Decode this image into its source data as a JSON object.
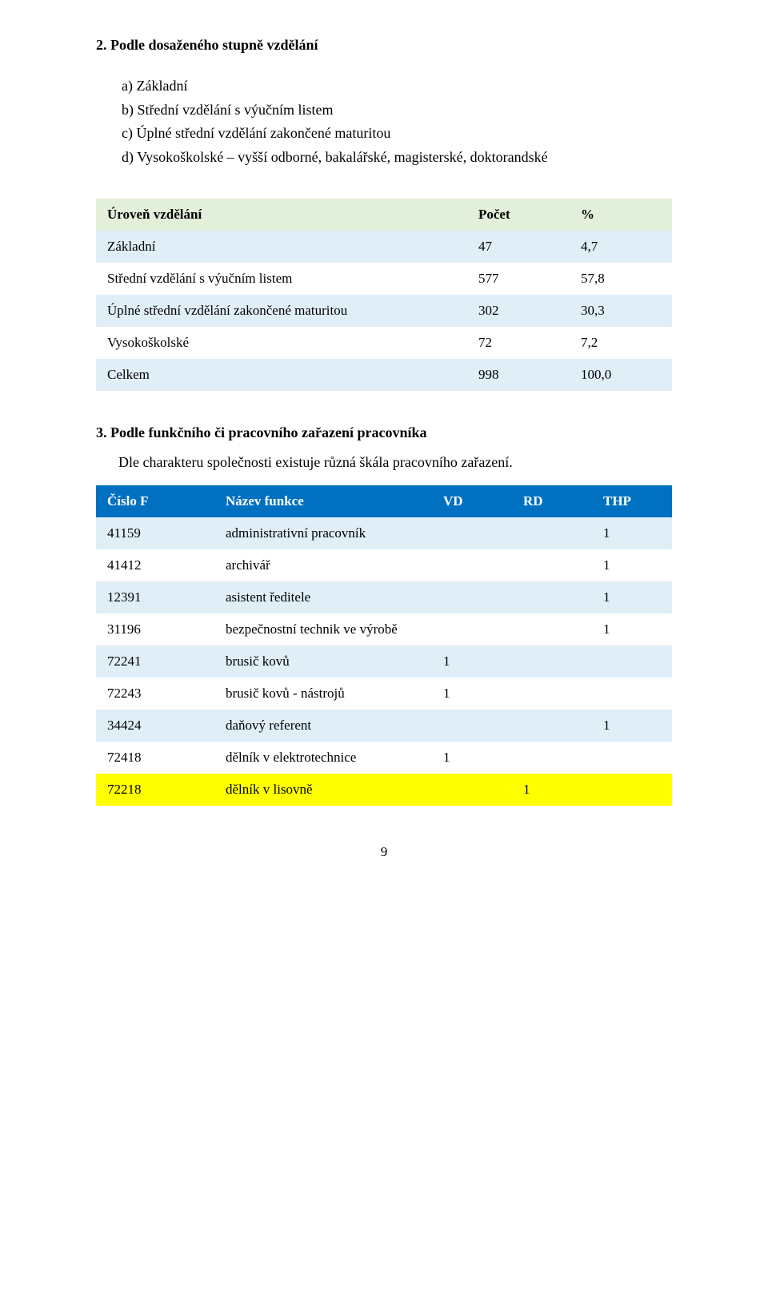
{
  "headings": {
    "education_section": "2. Podle dosaženého stupně vzdělání",
    "functional_section": "3. Podle funkčního či pracovního zařazení pracovníka"
  },
  "options": [
    "a) Základní",
    "b) Střední vzdělání s výučním listem",
    "c) Úplné střední vzdělání zakončené maturitou",
    "d) Vysokoškolské – vyšší odborné, bakalářské, magisterské, doktorandské"
  ],
  "education_table": {
    "header_bg": "#e2efda",
    "row_even_bg": "#e0eef8",
    "row_odd_bg": "#ffffff",
    "font_size_pt": 13,
    "columns": [
      "Úroveň vzdělání",
      "Počet",
      "%"
    ],
    "rows": [
      [
        "Základní",
        "47",
        "4,7"
      ],
      [
        "Střední vzdělání s výučním listem",
        "577",
        "57,8"
      ],
      [
        "Úplné střední vzdělání zakončené maturitou",
        "302",
        "30,3"
      ],
      [
        "Vysokoškolské",
        "72",
        "7,2"
      ],
      [
        "Celkem",
        "998",
        "100,0"
      ]
    ]
  },
  "functional_intro": "Dle charakteru společnosti existuje různá škála pracovního zařazení.",
  "positions_table": {
    "header_bg": "#0070c0",
    "header_fg": "#ffffff",
    "row_even_bg": "#e0eef8",
    "row_odd_bg": "#ffffff",
    "highlight_bg": "#ffff00",
    "font_size_pt": 13,
    "columns": [
      "Číslo F",
      "Název funkce",
      "VD",
      "RD",
      "THP"
    ],
    "rows": [
      {
        "code": "41159",
        "name": "administrativní pracovník",
        "vd": "",
        "rd": "",
        "thp": "1",
        "highlight": false
      },
      {
        "code": "41412",
        "name": "archivář",
        "vd": "",
        "rd": "",
        "thp": "1",
        "highlight": false
      },
      {
        "code": "12391",
        "name": "asistent ředitele",
        "vd": "",
        "rd": "",
        "thp": "1",
        "highlight": false
      },
      {
        "code": "31196",
        "name": "bezpečnostní technik ve výrobě",
        "vd": "",
        "rd": "",
        "thp": "1",
        "highlight": false
      },
      {
        "code": "72241",
        "name": "brusič kovů",
        "vd": "1",
        "rd": "",
        "thp": "",
        "highlight": false
      },
      {
        "code": "72243",
        "name": "brusič kovů -  nástrojů",
        "vd": "1",
        "rd": "",
        "thp": "",
        "highlight": false
      },
      {
        "code": "34424",
        "name": "daňový referent",
        "vd": "",
        "rd": "",
        "thp": "1",
        "highlight": false
      },
      {
        "code": "72418",
        "name": "dělník v elektrotechnice",
        "vd": "1",
        "rd": "",
        "thp": "",
        "highlight": false
      },
      {
        "code": "72218",
        "name": "dělník v lisovně",
        "vd": "",
        "rd": "1",
        "thp": "",
        "highlight": true
      }
    ]
  },
  "page_number": "9"
}
